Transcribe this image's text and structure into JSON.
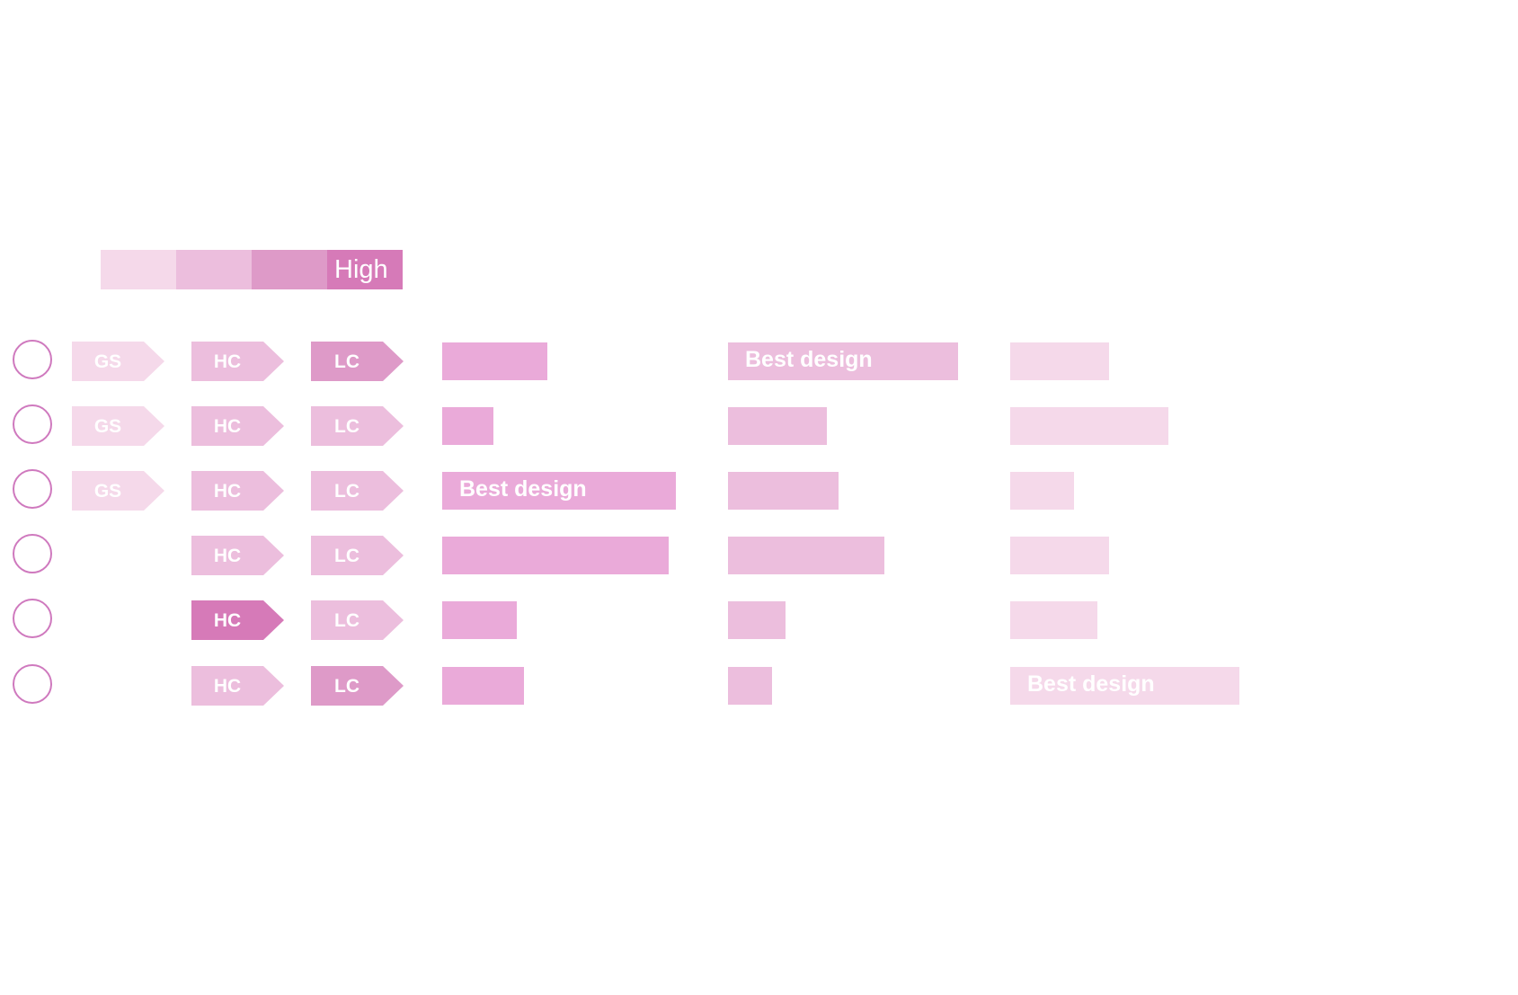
{
  "legend": {
    "colors": [
      "#f5d9ea",
      "#ecbedd",
      "#de9ac8",
      "#d67ab8"
    ],
    "high_label": "High"
  },
  "colors": {
    "radio_border": "#cf79be",
    "chevron_levels": [
      "#f5d9ea",
      "#ecbedd",
      "#de9ac8",
      "#d67ab8"
    ],
    "metric_bar_colors": [
      "#eaaad9",
      "#ecbedd",
      "#f5d9ea"
    ]
  },
  "rows": [
    {
      "chevrons": [
        {
          "label": "GS",
          "level": 0
        },
        {
          "label": "HC",
          "level": 1
        },
        {
          "label": "LC",
          "level": 2
        }
      ],
      "bars": [
        {
          "value": 0.45,
          "label": ""
        },
        {
          "value": 1.0,
          "label": "Best design"
        },
        {
          "value": 0.43,
          "label": ""
        }
      ]
    },
    {
      "chevrons": [
        {
          "label": "GS",
          "level": 0
        },
        {
          "label": "HC",
          "level": 1
        },
        {
          "label": "LC",
          "level": 1
        }
      ],
      "bars": [
        {
          "value": 0.22,
          "label": ""
        },
        {
          "value": 0.43,
          "label": ""
        },
        {
          "value": 0.69,
          "label": ""
        }
      ]
    },
    {
      "chevrons": [
        {
          "label": "GS",
          "level": 0
        },
        {
          "label": "HC",
          "level": 1
        },
        {
          "label": "LC",
          "level": 1
        }
      ],
      "bars": [
        {
          "value": 1.0,
          "label": "Best design"
        },
        {
          "value": 0.48,
          "label": ""
        },
        {
          "value": 0.28,
          "label": ""
        }
      ]
    },
    {
      "chevrons": [
        {
          "label": "HC",
          "level": 1
        },
        {
          "label": "LC",
          "level": 1
        }
      ],
      "bars": [
        {
          "value": 0.97,
          "label": ""
        },
        {
          "value": 0.68,
          "label": ""
        },
        {
          "value": 0.43,
          "label": ""
        }
      ]
    },
    {
      "chevrons": [
        {
          "label": "HC",
          "level": 3
        },
        {
          "label": "LC",
          "level": 1
        }
      ],
      "bars": [
        {
          "value": 0.32,
          "label": ""
        },
        {
          "value": 0.25,
          "label": ""
        },
        {
          "value": 0.38,
          "label": ""
        }
      ]
    },
    {
      "chevrons": [
        {
          "label": "HC",
          "level": 1
        },
        {
          "label": "LC",
          "level": 2
        }
      ],
      "bars": [
        {
          "value": 0.35,
          "label": ""
        },
        {
          "value": 0.19,
          "label": ""
        },
        {
          "value": 1.0,
          "label": "Best design"
        }
      ]
    }
  ]
}
